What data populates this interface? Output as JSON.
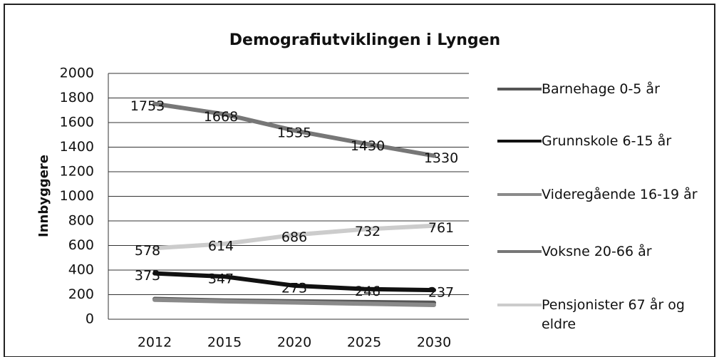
{
  "chart_data": {
    "type": "line",
    "title": "Demografiutviklingen i Lyngen",
    "y_label": "Innbyggere",
    "categories": [
      "2012",
      "2015",
      "2020",
      "2025",
      "2030"
    ],
    "series": [
      {
        "name": "Barnehage 0-5 år",
        "color": "#555555",
        "values": [
          165,
          152,
          146,
          140,
          134
        ],
        "data_labels": false
      },
      {
        "name": "Grunnskole 6-15 år",
        "color": "#111111",
        "values": [
          373,
          347,
          273,
          246,
          237
        ],
        "data_labels": true
      },
      {
        "name": "Videregående 16-19 år",
        "color": "#8a8a8a",
        "values": [
          158,
          146,
          136,
          126,
          116
        ],
        "data_labels": false
      },
      {
        "name": "Voksne 20-66 år",
        "color": "#777777",
        "values": [
          1753,
          1668,
          1535,
          1430,
          1330
        ],
        "data_labels": true
      },
      {
        "name": "Pensjonister 67 år og eldre",
        "color": "#cccccc",
        "values": [
          578,
          614,
          686,
          732,
          761
        ],
        "data_labels": true
      }
    ],
    "ylim": [
      0,
      2000
    ],
    "yticks": [
      0,
      200,
      400,
      600,
      800,
      1000,
      1200,
      1400,
      1600,
      1800,
      2000
    ],
    "grid": true,
    "legend": "right"
  }
}
